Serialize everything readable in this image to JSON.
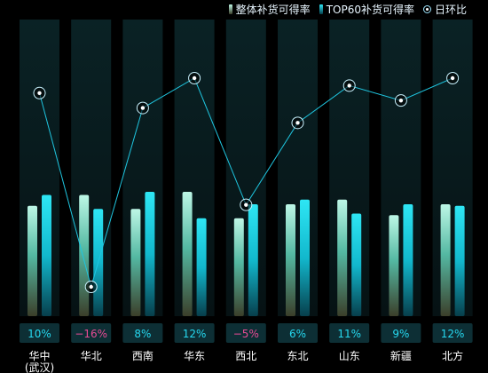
{
  "legend": {
    "overall": "整体补货可得率",
    "top60": "TOP60补货可得率",
    "dod": "日环比"
  },
  "colors": {
    "background": "#000000",
    "panel": "#0b1c1e",
    "overall_top": "#bdf7e6",
    "overall_mid": "#54b8a2",
    "overall_bottom": "#3b3f2a",
    "top60_top": "#2ee6f4",
    "top60_mid": "#12b8cd",
    "top60_bottom": "#073f4c",
    "line": "#1fc6e0",
    "positive_text": "#26d8ef",
    "negative_text": "#e84b94",
    "label_box": "#0d2f35"
  },
  "chart_data": {
    "type": "bar",
    "categories": [
      "华中\n(武汉)",
      "华北",
      "西南",
      "华东",
      "西北",
      "东北",
      "山东",
      "新疆",
      "北方"
    ],
    "series": [
      {
        "name": "整体补货可得率",
        "values": [
          0.71,
          0.78,
          0.69,
          0.8,
          0.63,
          0.72,
          0.75,
          0.65,
          0.72
        ]
      },
      {
        "name": "TOP60补货可得率",
        "values": [
          0.78,
          0.69,
          0.8,
          0.63,
          0.72,
          0.75,
          0.66,
          0.72,
          0.71
        ]
      },
      {
        "name": "日环比",
        "values": [
          10,
          -16,
          8,
          12,
          -5,
          6,
          11,
          9,
          12
        ]
      }
    ],
    "dod_labels": [
      "10%",
      "−16%",
      "8%",
      "12%",
      "−5%",
      "6%",
      "11%",
      "9%",
      "12%"
    ],
    "grid": false,
    "legend_position": "top-right"
  }
}
